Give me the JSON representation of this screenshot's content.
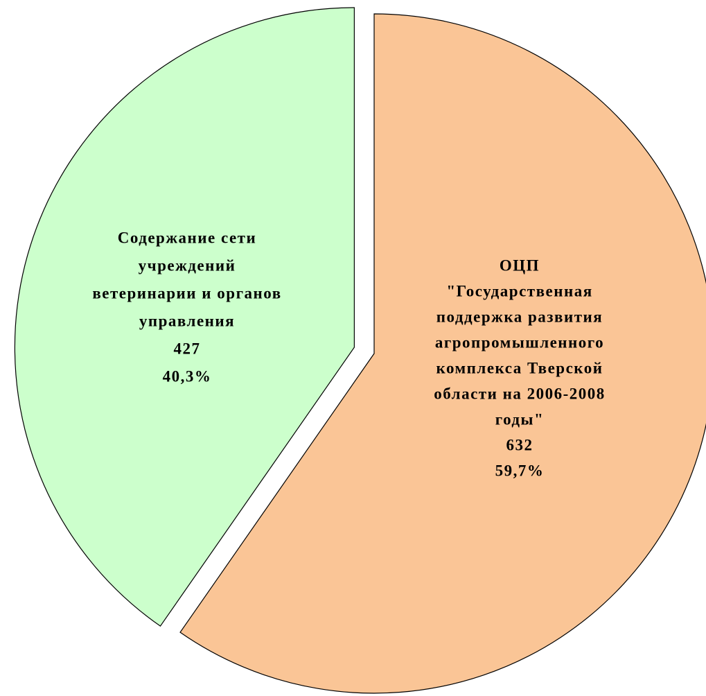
{
  "chart_data": {
    "type": "pie",
    "categories": [
      [
        "Содержание сети",
        "учреждений",
        "ветеринарии и органов",
        "управления"
      ],
      [
        "ОЦП",
        "\"Государственная",
        "поддержка развития",
        "агропромышленного",
        "комплекса Тверской",
        "области на 2006-2008",
        "годы\""
      ]
    ],
    "values": [
      427,
      632
    ],
    "percentages": [
      40.3,
      59.7
    ],
    "percentage_labels": [
      "40,3%",
      "59,7%"
    ],
    "colors": [
      "#ccffcc",
      "#fac596"
    ]
  }
}
